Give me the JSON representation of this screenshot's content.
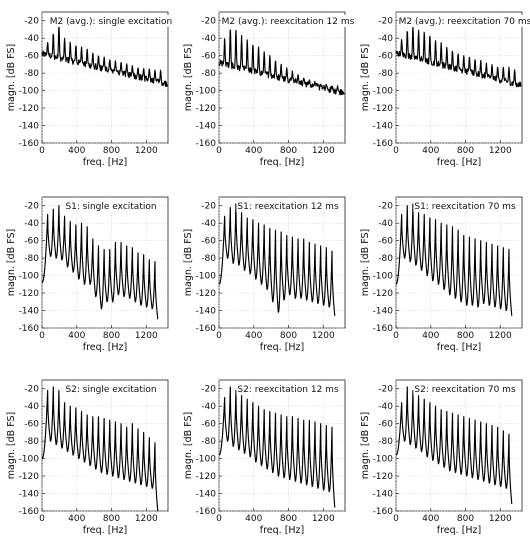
{
  "chart_data": [
    {
      "type": "line",
      "title": "M2 (avg.): single excitation",
      "xlabel": "freq. [Hz]",
      "ylabel": "magn. [dB FS]",
      "xlim": [
        0,
        1450
      ],
      "ylim": [
        -160,
        -10
      ],
      "xticks": [
        0,
        400,
        800,
        1200
      ],
      "yticks": [
        -20,
        -40,
        -60,
        -80,
        -100,
        -120,
        -140,
        -160
      ],
      "grid": true,
      "series": [
        {
          "kind": "noisy",
          "f0": 65,
          "n": 21,
          "peaks": [
            -44,
            -34,
            -24,
            -40,
            -44,
            -48,
            -50,
            -53,
            -57,
            -60,
            -62,
            -64,
            -66,
            -68,
            -70,
            -71,
            -73,
            -74,
            -75,
            -76,
            -77
          ],
          "floor_start": -58,
          "floor_end": -92
        }
      ]
    },
    {
      "type": "line",
      "title": "M2 (avg.): reexcitation 12 ms",
      "xlabel": "freq. [Hz]",
      "ylabel": "magn. [dB FS]",
      "xlim": [
        0,
        1450
      ],
      "ylim": [
        -160,
        -10
      ],
      "xticks": [
        0,
        400,
        800,
        1200
      ],
      "yticks": [
        -20,
        -40,
        -60,
        -80,
        -100,
        -120,
        -140,
        -160
      ],
      "grid": true,
      "series": [
        {
          "kind": "noisy",
          "f0": 65,
          "n": 21,
          "peaks": [
            -40,
            -28,
            -30,
            -38,
            -42,
            -46,
            -50,
            -55,
            -60,
            -65,
            -70,
            -74,
            -78,
            -82,
            -85,
            -88,
            -90,
            -92,
            -93,
            -94,
            -95
          ],
          "floor_start": -68,
          "floor_end": -103
        }
      ]
    },
    {
      "type": "line",
      "title": "M2 (avg.): reexcitation 70 ms",
      "xlabel": "freq. [Hz]",
      "ylabel": "magn. [dB FS]",
      "xlim": [
        0,
        1450
      ],
      "ylim": [
        -160,
        -10
      ],
      "xticks": [
        0,
        400,
        800,
        1200
      ],
      "yticks": [
        -20,
        -40,
        -60,
        -80,
        -100,
        -120,
        -140,
        -160
      ],
      "grid": true,
      "series": [
        {
          "kind": "noisy",
          "f0": 65,
          "n": 21,
          "peaks": [
            -42,
            -30,
            -26,
            -30,
            -32,
            -36,
            -42,
            -46,
            -50,
            -54,
            -57,
            -60,
            -62,
            -64,
            -66,
            -68,
            -70,
            -72,
            -73,
            -74,
            -76
          ],
          "floor_start": -57,
          "floor_end": -94
        }
      ]
    },
    {
      "type": "line",
      "title": "S1: single excitation",
      "xlabel": "freq. [Hz]",
      "ylabel": "magn. [dB FS]",
      "xlim": [
        0,
        1450
      ],
      "ylim": [
        -160,
        -10
      ],
      "xticks": [
        0,
        400,
        800,
        1200
      ],
      "yticks": [
        -20,
        -40,
        -60,
        -80,
        -100,
        -120,
        -140,
        -160
      ],
      "grid": true,
      "series": [
        {
          "kind": "synth",
          "f0": 65,
          "n": 20,
          "peaks": [
            -30,
            -24,
            -20,
            -32,
            -38,
            -42,
            -40,
            -44,
            -58,
            -66,
            -70,
            -70,
            -62,
            -62,
            -66,
            -68,
            -74,
            -76,
            -82,
            -84
          ],
          "troughs": [
            -78,
            -80,
            -82,
            -90,
            -96,
            -104,
            -110,
            -110,
            -124,
            -138,
            -130,
            -130,
            -122,
            -124,
            -126,
            -130,
            -134,
            -136,
            -138,
            -140
          ],
          "start": -108,
          "end": -150
        }
      ]
    },
    {
      "type": "line",
      "title": "S1: reexcitation 12 ms",
      "xlabel": "freq. [Hz]",
      "ylabel": "magn. [dB FS]",
      "xlim": [
        0,
        1450
      ],
      "ylim": [
        -160,
        -10
      ],
      "xticks": [
        0,
        400,
        800,
        1200
      ],
      "yticks": [
        -20,
        -40,
        -60,
        -80,
        -100,
        -120,
        -140,
        -160
      ],
      "grid": true,
      "series": [
        {
          "kind": "synth",
          "f0": 65,
          "n": 20,
          "peaks": [
            -32,
            -22,
            -18,
            -28,
            -34,
            -36,
            -40,
            -42,
            -46,
            -48,
            -50,
            -54,
            -56,
            -58,
            -58,
            -62,
            -64,
            -66,
            -68,
            -72
          ],
          "troughs": [
            -80,
            -86,
            -88,
            -94,
            -98,
            -104,
            -110,
            -116,
            -130,
            -142,
            -128,
            -122,
            -126,
            -126,
            -128,
            -130,
            -132,
            -134,
            -136,
            -140
          ],
          "start": -110,
          "end": -146
        }
      ]
    },
    {
      "type": "line",
      "title": "S1: reexcitation 70 ms",
      "xlabel": "freq. [Hz]",
      "ylabel": "magn. [dB FS]",
      "xlim": [
        0,
        1450
      ],
      "ylim": [
        -160,
        -10
      ],
      "xticks": [
        0,
        400,
        800,
        1200
      ],
      "yticks": [
        -20,
        -40,
        -60,
        -80,
        -100,
        -120,
        -140,
        -160
      ],
      "grid": true,
      "series": [
        {
          "kind": "synth",
          "f0": 65,
          "n": 20,
          "peaks": [
            -30,
            -20,
            -18,
            -28,
            -30,
            -34,
            -36,
            -40,
            -42,
            -44,
            -48,
            -54,
            -56,
            -58,
            -60,
            -62,
            -64,
            -66,
            -68,
            -70
          ],
          "troughs": [
            -80,
            -84,
            -88,
            -94,
            -100,
            -106,
            -110,
            -116,
            -122,
            -126,
            -130,
            -134,
            -134,
            -136,
            -132,
            -134,
            -136,
            -138,
            -140,
            -142
          ],
          "start": -110,
          "end": -146
        }
      ]
    },
    {
      "type": "line",
      "title": "S2: single excitation",
      "xlabel": "freq. [Hz]",
      "ylabel": "magn. [dB FS]",
      "xlim": [
        0,
        1450
      ],
      "ylim": [
        -160,
        -10
      ],
      "xticks": [
        0,
        400,
        800,
        1200
      ],
      "yticks": [
        -20,
        -40,
        -60,
        -80,
        -100,
        -120,
        -140,
        -160
      ],
      "grid": true,
      "series": [
        {
          "kind": "synth",
          "f0": 65,
          "n": 20,
          "peaks": [
            -22,
            -18,
            -22,
            -36,
            -40,
            -42,
            -46,
            -50,
            -52,
            -52,
            -54,
            -56,
            -58,
            -60,
            -64,
            -60,
            -66,
            -70,
            -76,
            -82
          ],
          "troughs": [
            -80,
            -84,
            -88,
            -92,
            -96,
            -100,
            -104,
            -108,
            -112,
            -116,
            -118,
            -120,
            -122,
            -124,
            -126,
            -128,
            -130,
            -132,
            -134,
            -136
          ],
          "start": -100,
          "end": -160
        }
      ]
    },
    {
      "type": "line",
      "title": "S2: reexcitation 12 ms",
      "xlabel": "freq. [Hz]",
      "ylabel": "magn. [dB FS]",
      "xlim": [
        0,
        1450
      ],
      "ylim": [
        -160,
        -10
      ],
      "xticks": [
        0,
        400,
        800,
        1200
      ],
      "yticks": [
        -20,
        -40,
        -60,
        -80,
        -100,
        -120,
        -140,
        -160
      ],
      "grid": true,
      "series": [
        {
          "kind": "synth",
          "f0": 65,
          "n": 20,
          "peaks": [
            -30,
            -18,
            -22,
            -28,
            -32,
            -36,
            -40,
            -44,
            -46,
            -48,
            -50,
            -52,
            -52,
            -54,
            -56,
            -56,
            -58,
            -60,
            -62,
            -64
          ],
          "troughs": [
            -80,
            -86,
            -90,
            -94,
            -98,
            -104,
            -108,
            -112,
            -116,
            -120,
            -122,
            -124,
            -126,
            -128,
            -130,
            -132,
            -134,
            -136,
            -138,
            -140
          ],
          "start": -96,
          "end": -156
        }
      ]
    },
    {
      "type": "line",
      "title": "S2: reexcitation 70 ms",
      "xlabel": "freq. [Hz]",
      "ylabel": "magn. [dB FS]",
      "xlim": [
        0,
        1450
      ],
      "ylim": [
        -160,
        -10
      ],
      "xticks": [
        0,
        400,
        800,
        1200
      ],
      "yticks": [
        -20,
        -40,
        -60,
        -80,
        -100,
        -120,
        -140,
        -160
      ],
      "grid": true,
      "series": [
        {
          "kind": "synth",
          "f0": 65,
          "n": 20,
          "peaks": [
            -36,
            -18,
            -22,
            -28,
            -32,
            -36,
            -40,
            -44,
            -46,
            -48,
            -50,
            -52,
            -54,
            -56,
            -58,
            -60,
            -62,
            -64,
            -68,
            -72
          ],
          "troughs": [
            -80,
            -84,
            -88,
            -92,
            -98,
            -102,
            -106,
            -110,
            -114,
            -116,
            -118,
            -120,
            -122,
            -124,
            -126,
            -128,
            -130,
            -132,
            -134,
            -136
          ],
          "start": -96,
          "end": -152
        }
      ]
    }
  ]
}
